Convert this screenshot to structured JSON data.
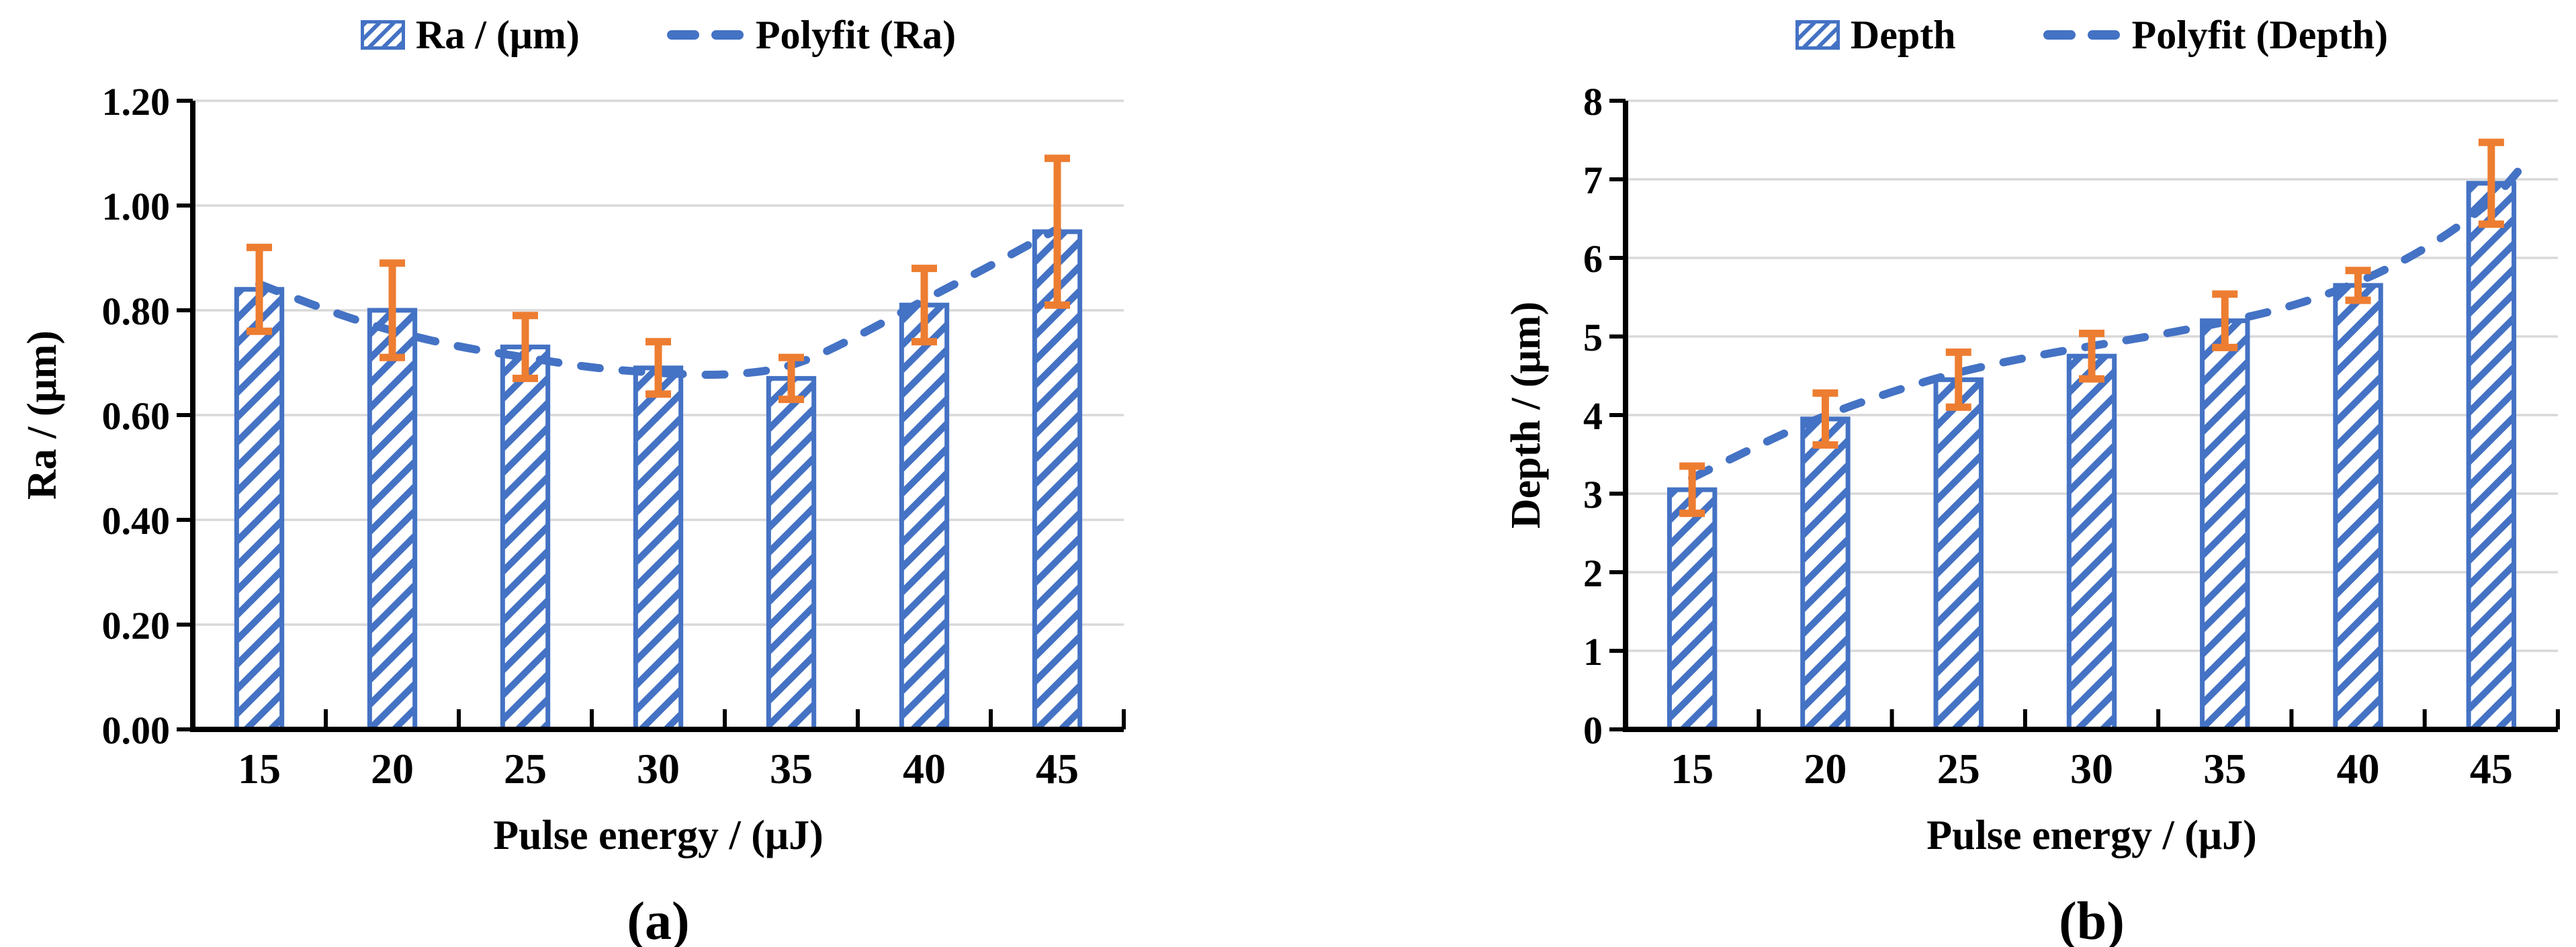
{
  "figure": {
    "background": "#ffffff",
    "panels": [
      "(a)",
      "(b)"
    ]
  },
  "colors": {
    "bar_fill": "#ffffff",
    "bar_hatch": "#4472C4",
    "bar_border": "#4472C4",
    "polyfit_line": "#4472C4",
    "error_bar": "#ED7D31",
    "gridline": "#D9D9D9",
    "axis": "#000000",
    "text": "#000000"
  },
  "chart_data": [
    {
      "type": "bar",
      "panel": "(a)",
      "sublabel": "(a)",
      "categories": [
        15,
        20,
        25,
        30,
        35,
        40,
        45
      ],
      "series": [
        {
          "name": "Ra / (μm)",
          "type": "bar",
          "values": [
            0.84,
            0.8,
            0.73,
            0.69,
            0.67,
            0.81,
            0.95
          ],
          "error_bars": [
            0.08,
            0.09,
            0.06,
            0.05,
            0.04,
            0.07,
            0.14
          ]
        },
        {
          "name": "Polyfit (Ra)",
          "type": "dashed-line",
          "x": [
            15,
            17.5,
            20,
            22.5,
            25,
            27.5,
            30,
            32.5,
            35,
            37.5,
            40,
            42.5,
            45
          ],
          "values": [
            0.85,
            0.8,
            0.76,
            0.73,
            0.71,
            0.69,
            0.68,
            0.675,
            0.69,
            0.75,
            0.82,
            0.885,
            0.955
          ]
        }
      ],
      "xlabel": "Pulse energy / (μJ)",
      "ylabel": "Ra / (μm)",
      "ylim": [
        0,
        1.2
      ],
      "ytick_step": 0.2,
      "ytick_decimals": 2,
      "grid": true,
      "legend_position": "top"
    },
    {
      "type": "bar",
      "panel": "(b)",
      "sublabel": "(b)",
      "categories": [
        15,
        20,
        25,
        30,
        35,
        40,
        45
      ],
      "series": [
        {
          "name": "Depth",
          "type": "bar",
          "values": [
            3.05,
            3.95,
            4.45,
            4.75,
            5.2,
            5.65,
            6.95
          ],
          "error_bars": [
            0.3,
            0.33,
            0.35,
            0.29,
            0.34,
            0.19,
            0.52
          ]
        },
        {
          "name": "Polyfit (Depth)",
          "type": "dashed-line",
          "x": [
            15,
            17.5,
            20,
            22.5,
            25,
            27.5,
            30,
            32.5,
            35,
            37.5,
            40,
            42.5,
            45,
            46.5
          ],
          "values": [
            3.2,
            3.62,
            4.0,
            4.3,
            4.55,
            4.73,
            4.88,
            5.02,
            5.18,
            5.38,
            5.68,
            6.1,
            6.7,
            7.3
          ]
        }
      ],
      "xlabel": "Pulse energy / (μJ)",
      "ylabel": "Depth / (μm)",
      "ylim": [
        0,
        8
      ],
      "ytick_step": 1,
      "ytick_decimals": 0,
      "grid": true,
      "legend_position": "top"
    }
  ]
}
